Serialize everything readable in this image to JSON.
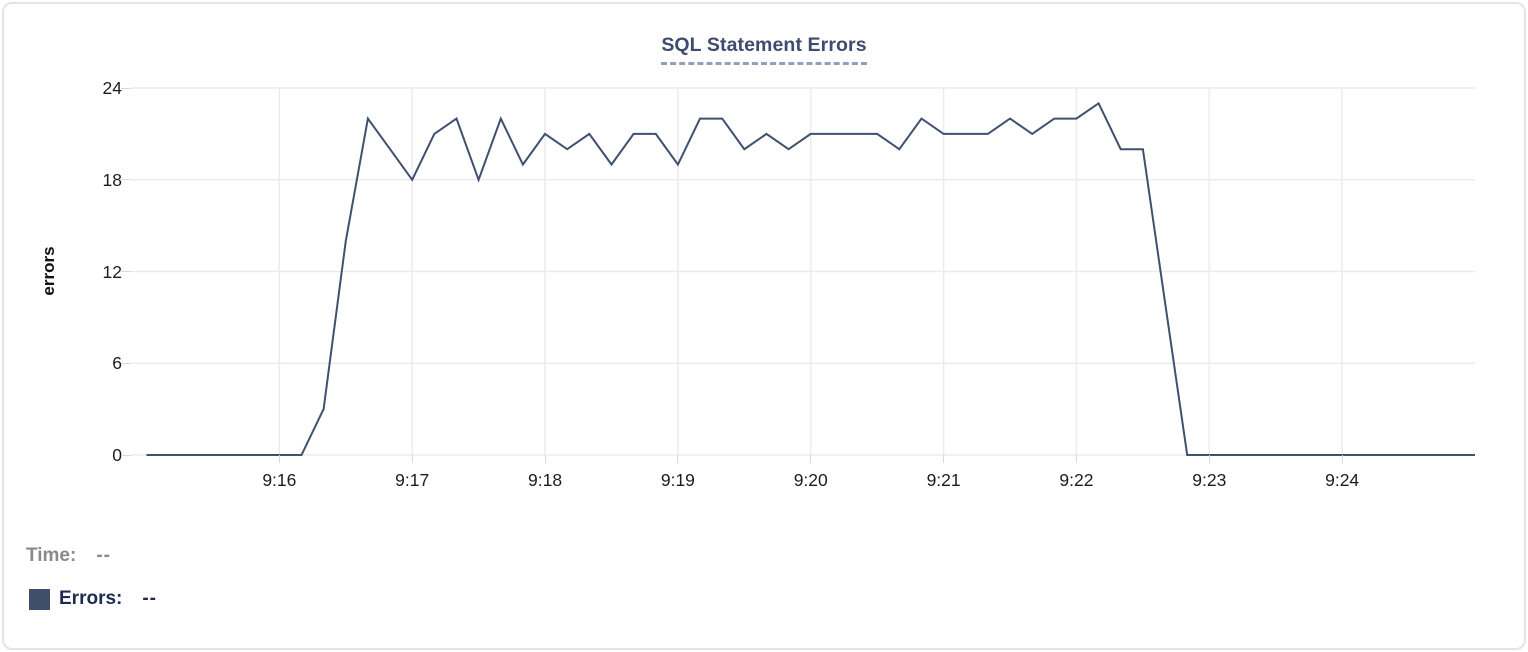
{
  "chart": {
    "title": "SQL Statement Errors",
    "ylabel": "errors"
  },
  "tooltip": {
    "time_label": "Time:",
    "time_value": "--",
    "errors_label": "Errors:",
    "errors_value": "--"
  },
  "colors": {
    "line": "#40506f",
    "swatch": "#3e4e6b",
    "title": "#3d4c6f",
    "title_underline": "#93a0bd",
    "grid": "#ececec",
    "tick": "#d9d9d9",
    "axis_text": "#1c1c1c",
    "time_text": "#8a8a8a",
    "errors_text": "#1d2b50",
    "panel_border": "#e4e4e8"
  },
  "chart_data": {
    "type": "line",
    "title": "SQL Statement Errors",
    "xlabel": "",
    "ylabel": "errors",
    "legend_position": "bottom-left",
    "grid": true,
    "ylim": [
      0,
      24
    ],
    "y_ticks": [
      0,
      6,
      12,
      18,
      24
    ],
    "x_ticks": [
      {
        "label": "9:16",
        "t": 60
      },
      {
        "label": "9:17",
        "t": 120
      },
      {
        "label": "9:18",
        "t": 180
      },
      {
        "label": "9:19",
        "t": 240
      },
      {
        "label": "9:20",
        "t": 300
      },
      {
        "label": "9:21",
        "t": 360
      },
      {
        "label": "9:22",
        "t": 420
      },
      {
        "label": "9:23",
        "t": 480
      },
      {
        "label": "9:24",
        "t": 540
      }
    ],
    "x_domain_seconds": [
      -7,
      600
    ],
    "series": [
      {
        "name": "Errors",
        "start_time": "9:15:00",
        "end_time": "9:25:00",
        "interval_seconds": 10,
        "values": [
          0,
          0,
          0,
          0,
          0,
          0,
          0,
          0,
          3,
          14,
          22,
          20,
          18,
          21,
          22,
          18,
          22,
          19,
          21,
          20,
          21,
          19,
          21,
          21,
          19,
          22,
          22,
          20,
          21,
          20,
          21,
          21,
          21,
          21,
          20,
          22,
          21,
          21,
          21,
          22,
          21,
          22,
          22,
          23,
          20,
          20,
          10,
          0,
          0,
          0,
          0,
          0,
          0,
          0,
          0,
          0,
          0,
          0,
          0,
          0,
          0
        ]
      }
    ]
  }
}
